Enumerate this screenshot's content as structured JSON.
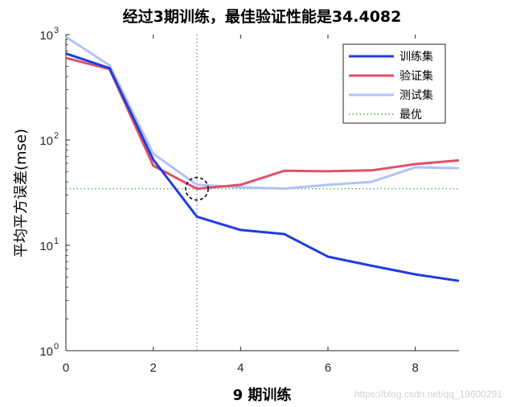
{
  "chart_data": {
    "type": "line",
    "title": "经过3期训练，最佳验证性能是34.4082",
    "xlabel": "9 期训练",
    "ylabel": "平均平方误差(mse)",
    "xlim": [
      0,
      9
    ],
    "ylim": [
      1,
      1000
    ],
    "yscale": "log",
    "x_ticks": [
      "0",
      "2",
      "4",
      "6",
      "8"
    ],
    "y_ticks": [
      {
        "base": "10",
        "exp": "0"
      },
      {
        "base": "10",
        "exp": "1"
      },
      {
        "base": "10",
        "exp": "2"
      },
      {
        "base": "10",
        "exp": "3"
      }
    ],
    "x": [
      0,
      1,
      2,
      3,
      4,
      5,
      6,
      7,
      8,
      9
    ],
    "series": [
      {
        "name": "训练集",
        "color": "#1f3de0",
        "width": 3,
        "values": [
          660,
          480,
          65,
          18.7,
          14,
          12.8,
          7.8,
          6.4,
          5.3,
          4.6
        ]
      },
      {
        "name": "验证集",
        "color": "#e0506a",
        "width": 3,
        "values": [
          600,
          470,
          57,
          34.4,
          37.5,
          51,
          50.5,
          51.5,
          59,
          64
        ]
      },
      {
        "name": "测试集",
        "color": "#aec3f8",
        "width": 3,
        "values": [
          950,
          510,
          74,
          37.5,
          35.5,
          34.5,
          37.5,
          40,
          55,
          54
        ]
      }
    ],
    "best": {
      "name": "最优",
      "epoch": 3,
      "value": 34.4082,
      "color": "#2e8b2e"
    },
    "legend": "top-right",
    "grid": false
  },
  "watermark": "https://blog.csdn.net/qq_19600291"
}
